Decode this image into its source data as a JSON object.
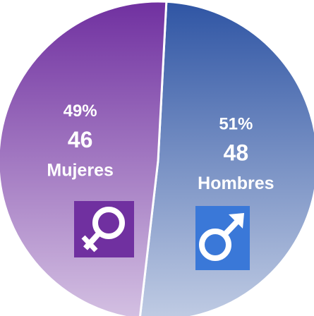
{
  "chart_data": {
    "type": "pie",
    "categories": [
      "Hombres",
      "Mujeres"
    ],
    "values": [
      51,
      49
    ],
    "value_labels": [
      "51%",
      "49%"
    ],
    "counts": [
      48,
      46
    ],
    "colors": [
      "#2f55a4",
      "#7030a0"
    ]
  }
}
